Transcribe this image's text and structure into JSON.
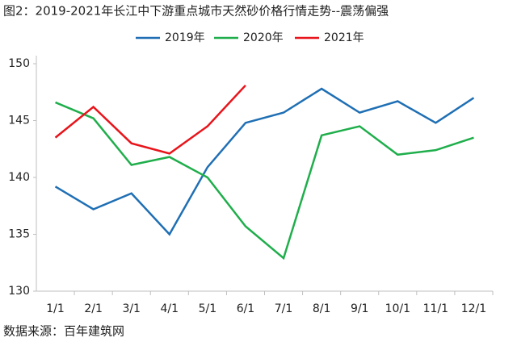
{
  "chart_data": {
    "type": "line",
    "title": "图2：2019-2021年长江中下游重点城市天然砂价格行情走势--震荡偏强",
    "source": "数据来源：百年建筑网",
    "categories": [
      "1/1",
      "2/1",
      "3/1",
      "4/1",
      "5/1",
      "6/1",
      "7/1",
      "8/1",
      "9/1",
      "10/1",
      "11/1",
      "12/1"
    ],
    "series": [
      {
        "name": "2019年",
        "color": "#1f6fb4",
        "values": [
          139.2,
          137.2,
          138.6,
          135.0,
          140.9,
          144.8,
          145.7,
          147.8,
          145.7,
          146.7,
          144.8,
          147.0
        ]
      },
      {
        "name": "2020年",
        "color": "#1fae4b",
        "values": [
          146.6,
          145.2,
          141.1,
          141.8,
          140.0,
          135.7,
          132.9,
          143.7,
          144.5,
          142.0,
          142.4,
          143.5
        ]
      },
      {
        "name": "2021年",
        "color": "#e8141b",
        "values": [
          143.5,
          146.2,
          143.0,
          142.1,
          144.5,
          148.1,
          null,
          null,
          null,
          null,
          null,
          null
        ]
      }
    ],
    "ylim": [
      130,
      150
    ],
    "yticks": [
      130,
      135,
      140,
      145,
      150
    ],
    "legend": "top"
  }
}
